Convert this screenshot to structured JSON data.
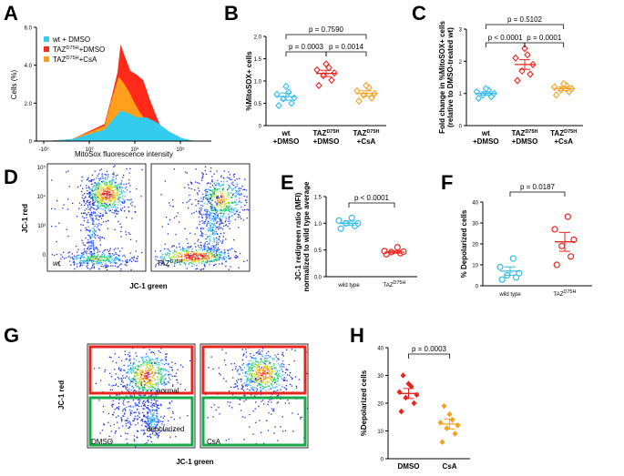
{
  "panels": [
    {
      "label": "A",
      "chart_data": {
        "type": "area",
        "title": "",
        "xlabel": "MitoSox fluorescence intensity",
        "ylabel": "Cells (%)",
        "x_scale": "log",
        "x_ticks": [
          "-10³",
          "10³",
          "10⁴",
          "10⁵"
        ],
        "y_ticks": [
          "0",
          "2.0",
          "4.0",
          "6.0"
        ],
        "ylim": [
          0,
          6
        ],
        "series": [
          {
            "name": "wt + DMSO",
            "color": "#33ccee",
            "x": [
              2.6,
              3.0,
              3.5,
              3.65,
              3.75,
              3.85,
              4.0,
              4.15,
              4.3,
              4.5,
              4.7,
              4.9
            ],
            "y": [
              0,
              0.1,
              0.6,
              1.2,
              1.6,
              1.5,
              1.25,
              1.25,
              1.0,
              0.5,
              0.15,
              0
            ]
          },
          {
            "name": "TAZ^D75H+DMSO",
            "name_main": "TAZ",
            "name_sup": "D75H",
            "name_suffix": "+DMSO",
            "color": "#ff2a1a",
            "x": [
              2.6,
              3.0,
              3.5,
              3.6,
              3.7,
              3.75,
              3.8,
              3.9,
              4.0,
              4.1,
              4.2,
              4.35,
              4.5,
              4.7
            ],
            "y": [
              0,
              0.1,
              0.9,
              2.2,
              3.6,
              5.1,
              4.6,
              3.7,
              3.5,
              3.2,
              2.2,
              0.9,
              0.3,
              0
            ]
          },
          {
            "name": "TAZ^D75H+CsA",
            "name_main": "TAZ",
            "name_sup": "D75H",
            "name_suffix": "+CsA",
            "color": "#ff9f1c",
            "x": [
              2.6,
              3.0,
              3.5,
              3.62,
              3.72,
              3.8,
              3.88,
              3.95,
              4.05,
              4.2,
              4.4,
              4.6
            ],
            "y": [
              0,
              0.1,
              0.8,
              2.3,
              3.4,
              3.05,
              2.6,
              2.1,
              1.5,
              0.8,
              0.2,
              0
            ]
          }
        ]
      }
    },
    {
      "label": "B",
      "chart_data": {
        "type": "scatter",
        "ylabel": "%MitoSOX+ cells",
        "ylim": [
          0,
          2.0
        ],
        "y_ticks": [
          "0",
          "0.5",
          "1.0",
          "1.5",
          "2.0"
        ],
        "groups": [
          {
            "line1": "wt",
            "line2": "+DMSO",
            "color": "#33bbee",
            "mean": 0.65,
            "sem": 0.08,
            "values": [
              0.45,
              0.5,
              0.6,
              0.62,
              0.7,
              0.75,
              0.88
            ]
          },
          {
            "line1_main": "TAZ",
            "line1_sup": "D75H",
            "line2": "+DMSO",
            "color": "#e8251c",
            "mean": 1.17,
            "sem": 0.07,
            "values": [
              0.9,
              1.02,
              1.12,
              1.18,
              1.25,
              1.3,
              1.38
            ]
          },
          {
            "line1_main": "TAZ",
            "line1_sup": "D75H",
            "line2": "+CsA",
            "color": "#f5a020",
            "mean": 0.72,
            "sem": 0.06,
            "values": [
              0.55,
              0.62,
              0.68,
              0.72,
              0.78,
              0.85,
              0.9
            ]
          }
        ],
        "comparisons": [
          {
            "from": 0,
            "to": 1,
            "label": "p = 0.0003"
          },
          {
            "from": 1,
            "to": 2,
            "label": "p = 0.0014"
          },
          {
            "from": 0,
            "to": 2,
            "label": "p = 0.7590"
          }
        ]
      }
    },
    {
      "label": "C",
      "chart_data": {
        "type": "scatter",
        "ylabel": "Fold change in %MitoSOX+ cells (relative to DMSO-treated wt)",
        "ylabel_line1": "Fold change in %MitoSOX+ cells",
        "ylabel_line2": "(relative to DMSO-treated wt)",
        "ylim": [
          0,
          3
        ],
        "y_ticks": [
          "0",
          "1",
          "2",
          "3"
        ],
        "groups": [
          {
            "line1": "wt",
            "line2": "+DMSO",
            "color": "#33bbee",
            "mean": 1.0,
            "sem": 0.05,
            "values": [
              0.85,
              0.9,
              0.95,
              1.0,
              1.05,
              1.1,
              1.15
            ]
          },
          {
            "line1_main": "TAZ",
            "line1_sup": "D75H",
            "line2": "+DMSO",
            "color": "#e8251c",
            "mean": 1.9,
            "sem": 0.15,
            "values": [
              1.4,
              1.6,
              1.7,
              1.9,
              2.1,
              2.2,
              2.4
            ]
          },
          {
            "line1_main": "TAZ",
            "line1_sup": "D75H",
            "line2": "+CsA",
            "color": "#f5a020",
            "mean": 1.15,
            "sem": 0.06,
            "values": [
              0.95,
              1.05,
              1.1,
              1.15,
              1.2,
              1.25,
              1.3
            ]
          }
        ],
        "comparisons": [
          {
            "from": 0,
            "to": 1,
            "label": "p < 0.0001"
          },
          {
            "from": 1,
            "to": 2,
            "label": "p = 0.0001"
          },
          {
            "from": 0,
            "to": 2,
            "label": "p = 0.5102"
          }
        ]
      }
    },
    {
      "label": "D",
      "xlabel": "JC-1 green",
      "ylabel": "JC-1 red",
      "plot_labels": [
        "wt",
        "TAZ"
      ],
      "plot2_sup": "D75H"
    },
    {
      "label": "E",
      "chart_data": {
        "type": "scatter",
        "ylabel_line1": "JC-1 red/green ratio (MFI)",
        "ylabel_line2": "normalized to wild type average",
        "ylim": [
          0,
          1.5
        ],
        "y_ticks": [
          "0.0",
          "0.5",
          "1.0",
          "1.5"
        ],
        "groups": [
          {
            "line1": "wild type",
            "color": "#33bbee",
            "mean": 1.0,
            "sem": 0.04,
            "values": [
              0.9,
              0.95,
              1.0,
              1.0,
              1.05,
              1.1
            ]
          },
          {
            "line1_main": "TAZ",
            "line1_sup": "D75H",
            "color": "#e8251c",
            "mean": 0.46,
            "sem": 0.02,
            "values": [
              0.42,
              0.44,
              0.46,
              0.47,
              0.48,
              0.55
            ]
          }
        ],
        "comparisons": [
          {
            "from": 0,
            "to": 1,
            "label": "p < 0.0001"
          }
        ]
      }
    },
    {
      "label": "F",
      "chart_data": {
        "type": "scatter",
        "ylabel": "% Depolarized cells",
        "ylim": [
          0,
          40
        ],
        "y_ticks": [
          "0",
          "10",
          "20",
          "30",
          "40"
        ],
        "groups": [
          {
            "line1": "wild type",
            "color": "#33bbee",
            "mean": 7,
            "sem": 2,
            "values": [
              3,
              4,
              5,
              6,
              9,
              13
            ]
          },
          {
            "line1_main": "TAZ",
            "line1_sup": "D75H",
            "color": "#e8251c",
            "mean": 21,
            "sem": 4.5,
            "values": [
              10,
              14,
              19,
              22,
              27,
              33
            ]
          }
        ],
        "comparisons": [
          {
            "from": 0,
            "to": 1,
            "label": "p = 0.0187"
          }
        ]
      }
    },
    {
      "label": "G",
      "xlabel": "JC-1 green",
      "ylabel": "JC-1 red",
      "gate_labels": [
        "normal",
        "depolarized"
      ],
      "plot_labels": [
        "DMSO",
        "CsA"
      ],
      "gate_colors": {
        "normal": "#e8251c",
        "depolarized": "#19a84a"
      }
    },
    {
      "label": "H",
      "chart_data": {
        "type": "scatter",
        "ylabel": "%Depolarized cells",
        "ylim": [
          0,
          40
        ],
        "y_ticks": [
          "0",
          "10",
          "20",
          "30",
          "40"
        ],
        "groups": [
          {
            "line1": "DMSO",
            "color": "#e8251c",
            "mean": 23.5,
            "sem": 1.8,
            "values": [
              17,
              20,
              22,
              23,
              24,
              26,
              27,
              30
            ]
          },
          {
            "line1": "CsA",
            "color": "#f5a020",
            "mean": 12.5,
            "sem": 1.8,
            "values": [
              6,
              9,
              11,
              12,
              13,
              14,
              16,
              19
            ]
          }
        ],
        "comparisons": [
          {
            "from": 0,
            "to": 1,
            "label": "p = 0.0003"
          }
        ]
      }
    }
  ]
}
